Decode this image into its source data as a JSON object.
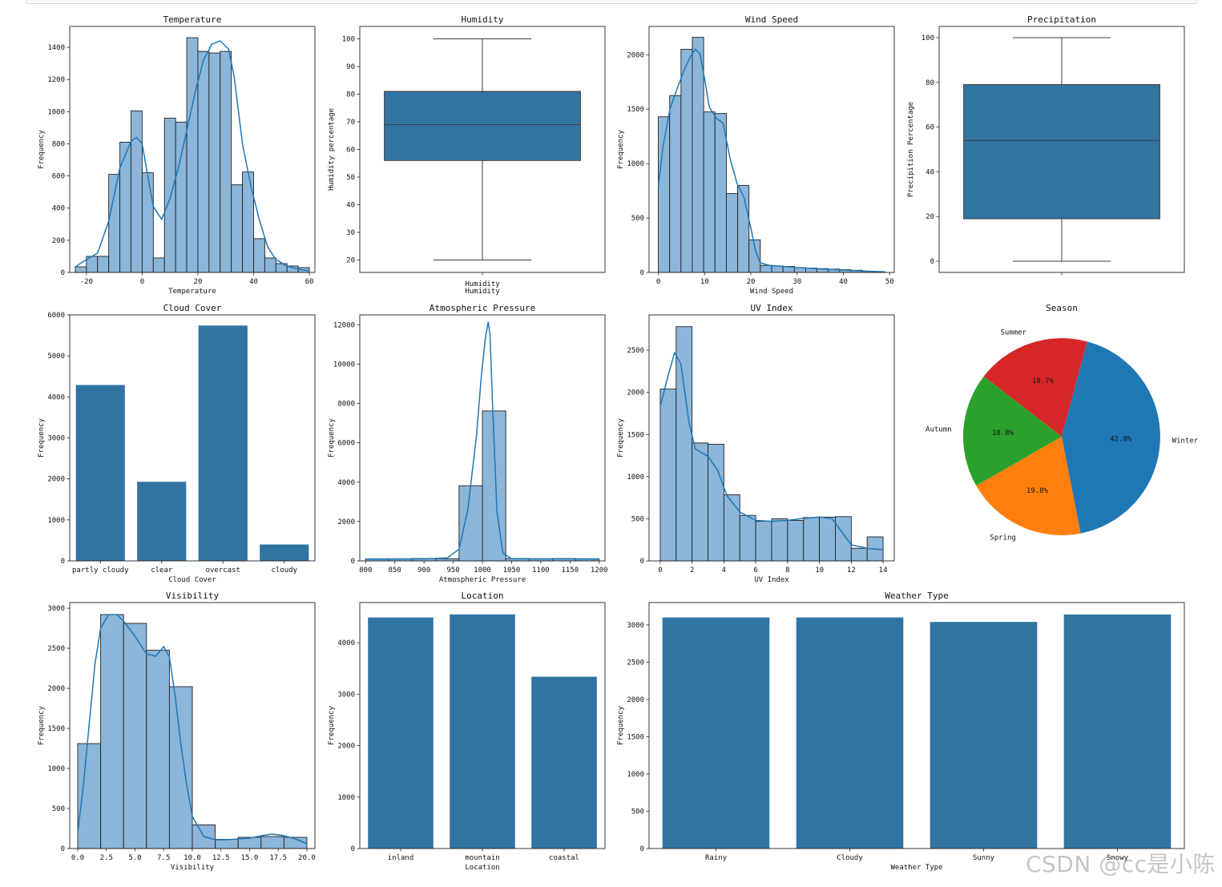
{
  "watermark": "CSDN @cc是小陈",
  "colors": {
    "bar": "#3274a1",
    "hist": "#8cb6da",
    "kde": "#1f77b4",
    "edge": "#222222",
    "box": "#3274a1",
    "pie": [
      "#d62728",
      "#2ca02c",
      "#ff7f0e",
      "#1f77b4"
    ]
  },
  "chart_data": [
    {
      "id": "temperature",
      "type": "histogram",
      "title": "Temperature",
      "xlabel": "Temperature",
      "ylabel": "Frequency",
      "xlim": [
        -26,
        62
      ],
      "ylim": [
        0,
        1530
      ],
      "xticks": [
        -20,
        0,
        20,
        40,
        60
      ],
      "yticks": [
        0,
        200,
        400,
        600,
        800,
        1000,
        1200,
        1400
      ],
      "bins": [
        [
          -24,
          -20,
          35
        ],
        [
          -20,
          -16,
          100
        ],
        [
          -16,
          -12,
          100
        ],
        [
          -12,
          -8,
          610
        ],
        [
          -8,
          -4,
          810
        ],
        [
          -4,
          0,
          1005
        ],
        [
          0,
          4,
          620
        ],
        [
          4,
          8,
          90
        ],
        [
          8,
          12,
          960
        ],
        [
          12,
          16,
          935
        ],
        [
          16,
          20,
          1460
        ],
        [
          20,
          24,
          1375
        ],
        [
          24,
          28,
          1365
        ],
        [
          28,
          32,
          1375
        ],
        [
          32,
          36,
          545
        ],
        [
          36,
          40,
          625
        ],
        [
          40,
          44,
          210
        ],
        [
          44,
          48,
          90
        ],
        [
          48,
          52,
          55
        ],
        [
          52,
          56,
          40
        ],
        [
          56,
          60,
          30
        ]
      ],
      "kde": [
        [
          -24,
          35
        ],
        [
          -20,
          80
        ],
        [
          -16,
          120
        ],
        [
          -12,
          320
        ],
        [
          -8,
          650
        ],
        [
          -4,
          815
        ],
        [
          -2,
          840
        ],
        [
          0,
          800
        ],
        [
          2,
          600
        ],
        [
          4,
          410
        ],
        [
          7,
          330
        ],
        [
          10,
          460
        ],
        [
          13,
          650
        ],
        [
          16,
          880
        ],
        [
          19,
          1120
        ],
        [
          22,
          1320
        ],
        [
          25,
          1420
        ],
        [
          28,
          1440
        ],
        [
          31,
          1390
        ],
        [
          33,
          1220
        ],
        [
          36,
          800
        ],
        [
          39,
          540
        ],
        [
          42,
          330
        ],
        [
          45,
          160
        ],
        [
          48,
          80
        ],
        [
          52,
          40
        ],
        [
          56,
          20
        ],
        [
          60,
          10
        ]
      ]
    },
    {
      "id": "humidity",
      "type": "box",
      "title": "Humidity",
      "xlabel": "Humidity",
      "ylabel": "Humidity percentage",
      "ylim": [
        15.5,
        104.5
      ],
      "yticks": [
        20,
        30,
        40,
        50,
        60,
        70,
        80,
        90,
        100
      ],
      "whisker_low": 20,
      "q1": 56,
      "median": 69,
      "q3": 81,
      "whisker_high": 100
    },
    {
      "id": "wind_speed",
      "type": "histogram",
      "title": "Wind Speed",
      "xlabel": "Wind Speed",
      "ylabel": "Frequency",
      "xlim": [
        -2,
        51
      ],
      "ylim": [
        0,
        2260
      ],
      "xticks": [
        0,
        10,
        20,
        30,
        40,
        50
      ],
      "yticks": [
        0,
        500,
        1000,
        1500,
        2000
      ],
      "bins": [
        [
          0,
          2.45,
          1430
        ],
        [
          2.45,
          4.9,
          1625
        ],
        [
          4.9,
          7.35,
          2050
        ],
        [
          7.35,
          9.8,
          2160
        ],
        [
          9.8,
          12.25,
          1475
        ],
        [
          12.25,
          14.7,
          1460
        ],
        [
          14.7,
          17.15,
          725
        ],
        [
          17.15,
          19.6,
          800
        ],
        [
          19.6,
          22.05,
          300
        ],
        [
          22.05,
          24.5,
          65
        ],
        [
          24.5,
          26.95,
          60
        ],
        [
          26.95,
          29.4,
          55
        ],
        [
          29.4,
          31.85,
          45
        ],
        [
          31.85,
          34.3,
          40
        ],
        [
          34.3,
          36.75,
          35
        ],
        [
          36.75,
          39.2,
          30
        ],
        [
          39.2,
          41.65,
          25
        ],
        [
          41.65,
          44.1,
          20
        ],
        [
          44.1,
          46.55,
          10
        ],
        [
          46.55,
          49,
          5
        ]
      ],
      "kde": [
        [
          0,
          780
        ],
        [
          1,
          1150
        ],
        [
          2.5,
          1500
        ],
        [
          4,
          1680
        ],
        [
          5.5,
          1850
        ],
        [
          7,
          1990
        ],
        [
          8,
          2050
        ],
        [
          9,
          2010
        ],
        [
          10,
          1780
        ],
        [
          11,
          1520
        ],
        [
          12.5,
          1420
        ],
        [
          14,
          1370
        ],
        [
          15.5,
          1050
        ],
        [
          17,
          820
        ],
        [
          18.5,
          690
        ],
        [
          20,
          410
        ],
        [
          21,
          200
        ],
        [
          22,
          90
        ],
        [
          24,
          65
        ],
        [
          27,
          55
        ],
        [
          30,
          45
        ],
        [
          34,
          35
        ],
        [
          38,
          25
        ],
        [
          42,
          18
        ],
        [
          46,
          10
        ],
        [
          49,
          5
        ]
      ]
    },
    {
      "id": "precipitation",
      "type": "box",
      "title": "Precipitation",
      "xlabel": "",
      "ylabel": "Precipition Percentage",
      "ylim": [
        -5,
        105
      ],
      "yticks": [
        0,
        20,
        40,
        60,
        80,
        100
      ],
      "whisker_low": 0,
      "q1": 19,
      "median": 54,
      "q3": 79,
      "whisker_high": 100
    },
    {
      "id": "cloud_cover",
      "type": "bar",
      "title": "Cloud Cover",
      "xlabel": "Cloud Cover",
      "ylabel": "Frequency",
      "categories": [
        "partly cloudy",
        "clear",
        "overcast",
        "cloudy"
      ],
      "values": [
        4290,
        1930,
        5740,
        400
      ],
      "ylim": [
        0,
        6000
      ],
      "yticks": [
        0,
        1000,
        2000,
        3000,
        4000,
        5000,
        6000
      ]
    },
    {
      "id": "atmospheric_pressure",
      "type": "histogram",
      "title": "Atmospheric Pressure",
      "xlabel": "Atmospheric Pressure",
      "ylabel": "Frequency",
      "xlim": [
        790,
        1210
      ],
      "ylim": [
        0,
        12500
      ],
      "xticks": [
        800,
        850,
        900,
        950,
        1000,
        1050,
        1100,
        1150,
        1200
      ],
      "yticks": [
        0,
        2000,
        4000,
        6000,
        8000,
        10000,
        12000
      ],
      "bins": [
        [
          800,
          840,
          110
        ],
        [
          840,
          880,
          110
        ],
        [
          880,
          920,
          120
        ],
        [
          920,
          960,
          110
        ],
        [
          960,
          1000,
          3820
        ],
        [
          1000,
          1040,
          7620
        ],
        [
          1040,
          1080,
          120
        ],
        [
          1080,
          1120,
          110
        ],
        [
          1120,
          1160,
          120
        ],
        [
          1160,
          1200,
          110
        ]
      ],
      "kde": [
        [
          800,
          90
        ],
        [
          850,
          95
        ],
        [
          900,
          100
        ],
        [
          940,
          150
        ],
        [
          960,
          600
        ],
        [
          975,
          2600
        ],
        [
          990,
          6400
        ],
        [
          998,
          9300
        ],
        [
          1005,
          11300
        ],
        [
          1010,
          12150
        ],
        [
          1013,
          11500
        ],
        [
          1018,
          7500
        ],
        [
          1025,
          2500
        ],
        [
          1035,
          400
        ],
        [
          1050,
          110
        ],
        [
          1100,
          100
        ],
        [
          1150,
          100
        ],
        [
          1200,
          90
        ]
      ]
    },
    {
      "id": "uv_index",
      "type": "histogram",
      "title": "UV Index",
      "xlabel": "UV Index",
      "ylabel": "Frequency",
      "xlim": [
        -0.7,
        14.7
      ],
      "ylim": [
        0,
        2920
      ],
      "xticks": [
        0,
        2,
        4,
        6,
        8,
        10,
        12,
        14
      ],
      "yticks": [
        0,
        500,
        1000,
        1500,
        2000,
        2500
      ],
      "bins": [
        [
          0,
          1,
          2040
        ],
        [
          1,
          2,
          2780
        ],
        [
          2,
          3,
          1400
        ],
        [
          3,
          4,
          1385
        ],
        [
          4,
          5,
          785
        ],
        [
          5,
          6,
          540
        ],
        [
          6,
          7,
          470
        ],
        [
          7,
          8,
          500
        ],
        [
          8,
          9,
          480
        ],
        [
          9,
          10,
          515
        ],
        [
          10,
          11,
          520
        ],
        [
          11,
          12,
          525
        ],
        [
          12,
          13,
          150
        ],
        [
          13,
          14,
          285
        ]
      ],
      "kde": [
        [
          0,
          1830
        ],
        [
          0.5,
          2200
        ],
        [
          0.9,
          2470
        ],
        [
          1.3,
          2340
        ],
        [
          1.8,
          1650
        ],
        [
          2.2,
          1330
        ],
        [
          3,
          1240
        ],
        [
          3.6,
          1080
        ],
        [
          4.2,
          770
        ],
        [
          5,
          580
        ],
        [
          6,
          480
        ],
        [
          7,
          470
        ],
        [
          8,
          480
        ],
        [
          9,
          505
        ],
        [
          10,
          520
        ],
        [
          10.8,
          500
        ],
        [
          11.5,
          320
        ],
        [
          12,
          190
        ],
        [
          13,
          150
        ],
        [
          14,
          130
        ]
      ]
    },
    {
      "id": "season",
      "type": "pie",
      "title": "Season",
      "labels": [
        "Summer",
        "Autumn",
        "Spring",
        "Winter"
      ],
      "values": [
        18.7,
        18.8,
        19.8,
        42.8
      ],
      "pct_labels": [
        "18.7%",
        "18.8%",
        "19.8%",
        "42.8%"
      ]
    },
    {
      "id": "visibility",
      "type": "histogram",
      "title": "Visibility",
      "xlabel": "Visibility",
      "ylabel": "Frequency",
      "xlim": [
        -0.7,
        20.7
      ],
      "ylim": [
        0,
        3070
      ],
      "xticks": [
        0,
        2.5,
        5,
        7.5,
        10,
        12.5,
        15,
        17.5,
        20
      ],
      "xtick_labels": [
        "0.0",
        "2.5",
        "5.0",
        "7.5",
        "10.0",
        "12.5",
        "15.0",
        "17.5",
        "20.0"
      ],
      "yticks": [
        0,
        500,
        1000,
        1500,
        2000,
        2500,
        3000
      ],
      "bins": [
        [
          0,
          2,
          1310
        ],
        [
          2,
          4,
          2920
        ],
        [
          4,
          6,
          2810
        ],
        [
          6,
          8,
          2475
        ],
        [
          8,
          10,
          2020
        ],
        [
          10,
          12,
          295
        ],
        [
          12,
          14,
          115
        ],
        [
          14,
          16,
          140
        ],
        [
          16,
          18,
          150
        ],
        [
          18,
          20,
          140
        ]
      ],
      "kde": [
        [
          0,
          200
        ],
        [
          0.5,
          800
        ],
        [
          1,
          1550
        ],
        [
          1.5,
          2300
        ],
        [
          2,
          2750
        ],
        [
          2.7,
          2920
        ],
        [
          3.4,
          2920
        ],
        [
          4,
          2840
        ],
        [
          5,
          2650
        ],
        [
          6,
          2430
        ],
        [
          6.8,
          2400
        ],
        [
          7.5,
          2520
        ],
        [
          8,
          2390
        ],
        [
          8.5,
          1900
        ],
        [
          9,
          1300
        ],
        [
          9.5,
          800
        ],
        [
          10,
          400
        ],
        [
          11,
          150
        ],
        [
          12,
          110
        ],
        [
          13,
          110
        ],
        [
          14,
          120
        ],
        [
          15,
          130
        ],
        [
          16,
          160
        ],
        [
          17,
          180
        ],
        [
          18,
          160
        ],
        [
          19,
          120
        ],
        [
          20,
          60
        ]
      ]
    },
    {
      "id": "location",
      "type": "bar",
      "title": "Location",
      "xlabel": "Location",
      "ylabel": "Frequency",
      "categories": [
        "inland",
        "mountain",
        "coastal"
      ],
      "values": [
        4490,
        4550,
        3340
      ],
      "ylim": [
        0,
        4780
      ],
      "yticks": [
        0,
        1000,
        2000,
        3000,
        4000
      ]
    },
    {
      "id": "weather_type",
      "type": "bar",
      "title": "Weather Type",
      "xlabel": "Weather Type",
      "ylabel": "Frequency",
      "categories": [
        "Rainy",
        "Cloudy",
        "Sunny",
        "Snowy"
      ],
      "values": [
        3100,
        3100,
        3040,
        3140
      ],
      "ylim": [
        0,
        3300
      ],
      "yticks": [
        0,
        500,
        1000,
        1500,
        2000,
        2500,
        3000
      ]
    }
  ]
}
